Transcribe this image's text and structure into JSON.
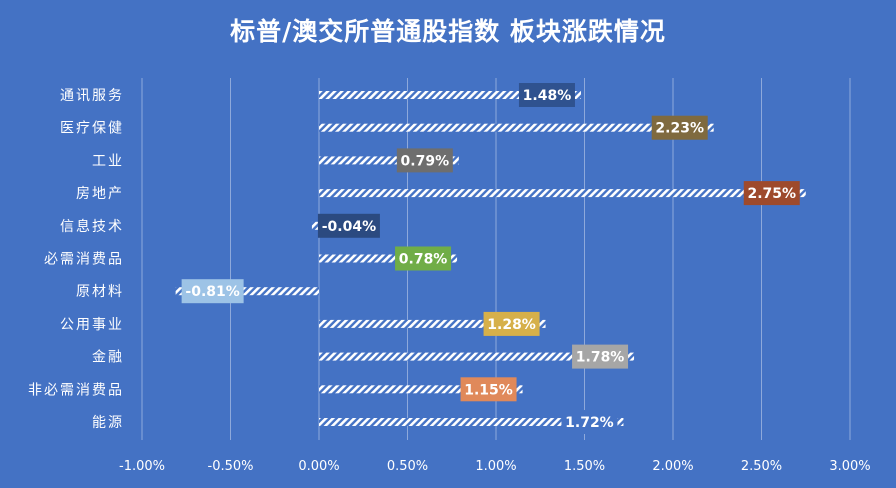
{
  "chart_data": {
    "type": "bar",
    "orientation": "horizontal",
    "title": "标普/澳交所普通股指数 板块涨跌情况",
    "categories": [
      "通讯服务",
      "医疗保健",
      "工业",
      "房地产",
      "信息技术",
      "必需消费品",
      "原材料",
      "公用事业",
      "金融",
      "非必需消费品",
      "能源"
    ],
    "values": [
      1.48,
      2.23,
      0.79,
      2.75,
      -0.04,
      0.78,
      -0.81,
      1.28,
      1.78,
      1.15,
      1.72
    ],
    "data_labels": [
      "1.48%",
      "2.23%",
      "0.79%",
      "2.75%",
      "-0.04%",
      "0.78%",
      "-0.81%",
      "1.28%",
      "1.78%",
      "1.15%",
      "1.72%"
    ],
    "value_unit": "%",
    "xlim": [
      -1.0,
      3.0
    ],
    "x_ticks": [
      -1.0,
      -0.5,
      0.0,
      0.5,
      1.0,
      1.5,
      2.0,
      2.5,
      3.0
    ],
    "x_tick_labels": [
      "-1.00%",
      "-0.50%",
      "0.00%",
      "0.50%",
      "1.00%",
      "1.50%",
      "2.00%",
      "2.50%",
      "3.00%"
    ],
    "grid": "vertical",
    "legend": "none",
    "bar_fill": "hatched",
    "label_colors": [
      "#2F528F",
      "#7F6A3F",
      "#6E6E6E",
      "#9E4A2C",
      "#2B4A80",
      "#70AD47",
      "#9DC3E6",
      "#D6B04A",
      "#A6A6A6",
      "#E0895A",
      "#4472C4"
    ],
    "colors": {
      "background": "#4472C4",
      "bar_stripe": "#ffffff",
      "text": "#ffffff",
      "grid": "#8EA9DB"
    }
  }
}
